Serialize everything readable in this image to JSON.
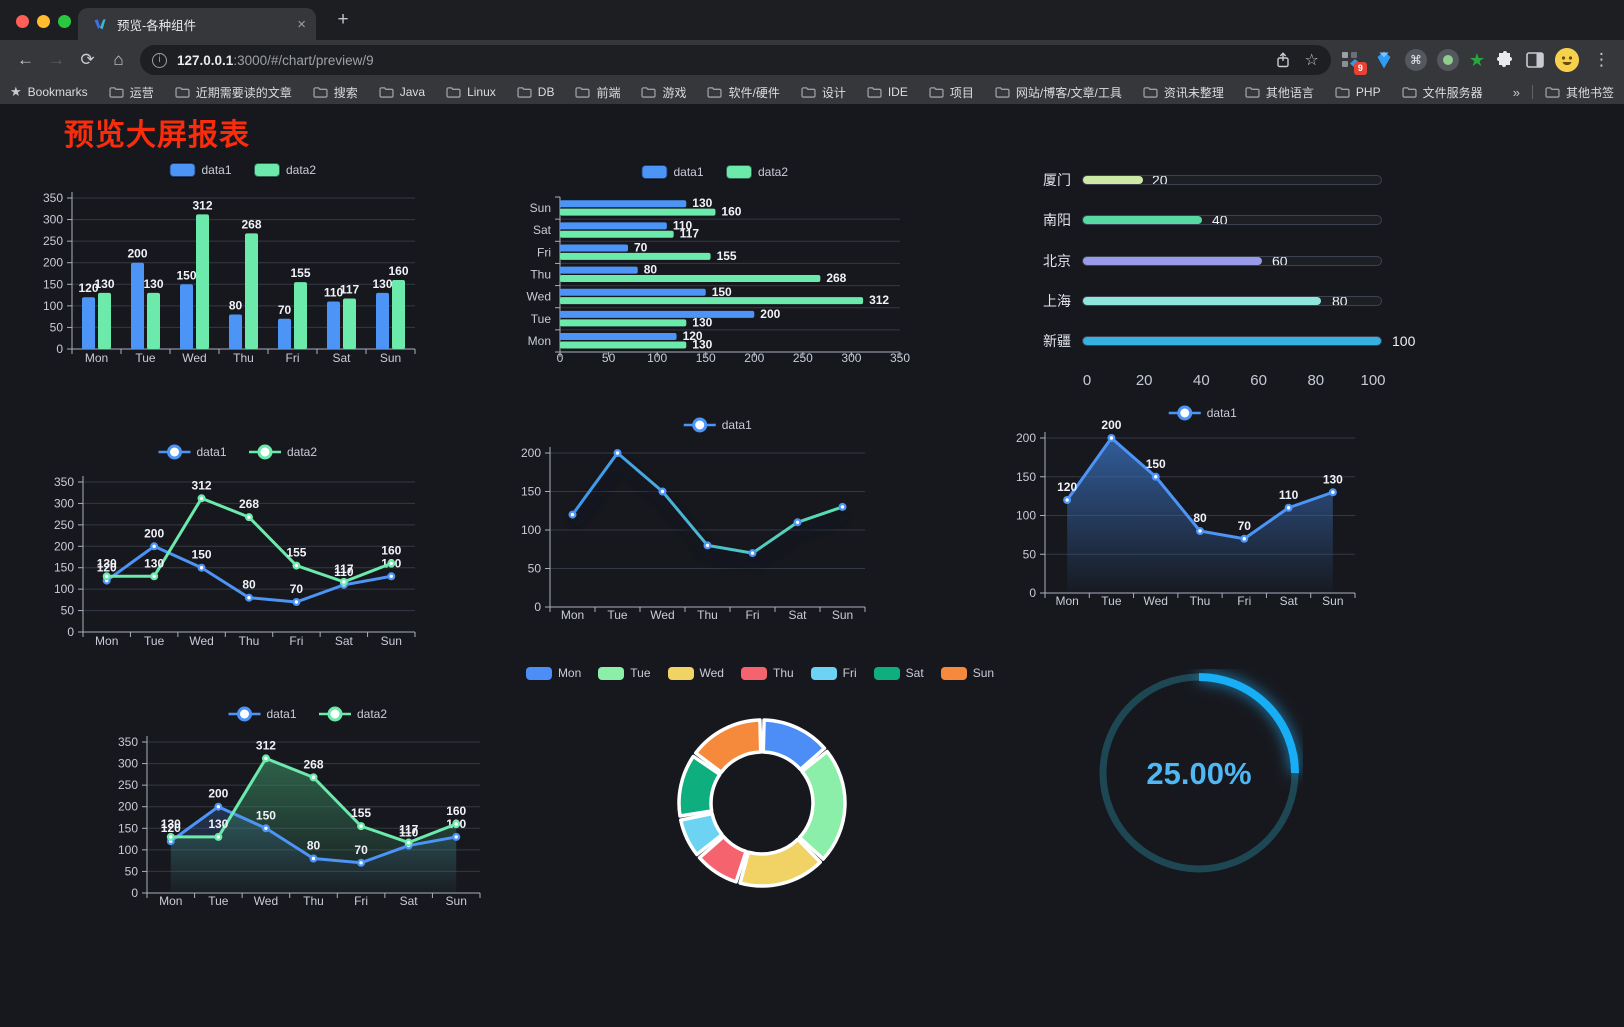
{
  "browser": {
    "tab_title": "预览-各种组件",
    "url_host": "127.0.0.1",
    "url_rest": ":3000/#/chart/preview/9",
    "extension_badge": "9",
    "bookmarks": [
      "Bookmarks",
      "运营",
      "近期需要读的文章",
      "搜索",
      "Java",
      "Linux",
      "DB",
      "前端",
      "游戏",
      "软件/硬件",
      "设计",
      "IDE",
      "项目",
      "网站/博客/文章/工具",
      "资讯未整理",
      "其他语言",
      "PHP",
      "文件服务器"
    ],
    "bookmarks_overflow": "»",
    "other_bookmarks": "其他书签"
  },
  "icons": {
    "close": "×",
    "new_tab": "+",
    "back": "←",
    "forward": "→",
    "reload": "⟳",
    "home": "⌂",
    "menu": "⋮",
    "star": "☆",
    "bookmark_star": "★",
    "command": "⌘",
    "ext_star": "★",
    "overflow": "»"
  },
  "page": {
    "title": "预览大屏报表",
    "title_color": "#F92C0B",
    "background": "#17181E"
  },
  "chart_data": [
    {
      "id": "bar-grouped",
      "type": "bar",
      "categories": [
        "Mon",
        "Tue",
        "Wed",
        "Thu",
        "Fri",
        "Sat",
        "Sun"
      ],
      "series": [
        {
          "name": "data1",
          "color": "#4D94F7",
          "values": [
            120,
            200,
            150,
            80,
            70,
            110,
            130
          ]
        },
        {
          "name": "data2",
          "color": "#6CEAAB",
          "values": [
            130,
            130,
            312,
            268,
            155,
            117,
            160
          ]
        }
      ],
      "ylim": [
        0,
        350
      ],
      "yticks": [
        0,
        50,
        100,
        150,
        200,
        250,
        300,
        350
      ],
      "legend": [
        "data1",
        "data2"
      ],
      "legend_position": "top",
      "value_labels": true,
      "grid": true
    },
    {
      "id": "bar-horizontal",
      "type": "bar-horizontal",
      "categories": [
        "Mon",
        "Tue",
        "Wed",
        "Thu",
        "Fri",
        "Sat",
        "Sun"
      ],
      "display_order_top_to_bottom": [
        "Sun",
        "Sat",
        "Fri",
        "Thu",
        "Wed",
        "Tue",
        "Mon"
      ],
      "series": [
        {
          "name": "data1",
          "color": "#4D94F7",
          "values": [
            120,
            200,
            150,
            80,
            70,
            110,
            130
          ]
        },
        {
          "name": "data2",
          "color": "#6CEAAB",
          "values": [
            130,
            130,
            312,
            268,
            155,
            117,
            160
          ]
        }
      ],
      "xlim": [
        0,
        350
      ],
      "xticks": [
        0,
        50,
        100,
        150,
        200,
        250,
        300,
        350
      ],
      "legend": [
        "data1",
        "data2"
      ],
      "legend_position": "top",
      "value_labels": true,
      "grid": true
    },
    {
      "id": "progress",
      "type": "progress-bars",
      "max": 100,
      "items": [
        {
          "label": "厦门",
          "value": 20,
          "color": "#CDE9A6"
        },
        {
          "label": "南阳",
          "value": 40,
          "color": "#57D9A3"
        },
        {
          "label": "北京",
          "value": 60,
          "color": "#989BE8"
        },
        {
          "label": "上海",
          "value": 80,
          "color": "#8FE6DD"
        },
        {
          "label": "新疆",
          "value": 100,
          "color": "#35B2E2"
        }
      ],
      "xticks": [
        0,
        20,
        40,
        60,
        80,
        100
      ]
    },
    {
      "id": "line-two",
      "type": "line",
      "categories": [
        "Mon",
        "Tue",
        "Wed",
        "Thu",
        "Fri",
        "Sat",
        "Sun"
      ],
      "series": [
        {
          "name": "data1",
          "color": "#4D94F7",
          "values": [
            120,
            200,
            150,
            80,
            70,
            110,
            130
          ]
        },
        {
          "name": "data2",
          "color": "#6CEAAB",
          "values": [
            130,
            130,
            312,
            268,
            155,
            117,
            160
          ]
        }
      ],
      "ylim": [
        0,
        350
      ],
      "yticks": [
        0,
        50,
        100,
        150,
        200,
        250,
        300,
        350
      ],
      "legend": [
        "data1",
        "data2"
      ],
      "legend_position": "top",
      "value_labels": true,
      "grid": true
    },
    {
      "id": "line-gradient",
      "type": "line",
      "categories": [
        "Mon",
        "Tue",
        "Wed",
        "Thu",
        "Fri",
        "Sat",
        "Sun"
      ],
      "series": [
        {
          "name": "data1",
          "color": "#4D94F7",
          "line_gradient": [
            "#3E8DF5",
            "#5BE8A8"
          ],
          "shadow": true,
          "values": [
            120,
            200,
            150,
            80,
            70,
            110,
            130
          ]
        }
      ],
      "ylim": [
        0,
        200
      ],
      "yticks": [
        0,
        50,
        100,
        150,
        200
      ],
      "legend": [
        "data1"
      ],
      "legend_position": "top",
      "value_labels": false,
      "grid": true
    },
    {
      "id": "line-area",
      "type": "area",
      "categories": [
        "Mon",
        "Tue",
        "Wed",
        "Thu",
        "Fri",
        "Sat",
        "Sun"
      ],
      "series": [
        {
          "name": "data1",
          "color": "#4D94F7",
          "area": [
            "rgba(56,110,185,0.80)",
            "rgba(56,110,185,0.02)"
          ],
          "values": [
            120,
            200,
            150,
            80,
            70,
            110,
            130
          ]
        }
      ],
      "ylim": [
        0,
        200
      ],
      "yticks": [
        0,
        50,
        100,
        150,
        200
      ],
      "legend": [
        "data1"
      ],
      "legend_position": "top",
      "value_labels": true,
      "grid": true
    },
    {
      "id": "line-area-two",
      "type": "area",
      "categories": [
        "Mon",
        "Tue",
        "Wed",
        "Thu",
        "Fri",
        "Sat",
        "Sun"
      ],
      "series": [
        {
          "name": "data1",
          "color": "#4D94F7",
          "area": [
            "rgba(62,110,185,0.55)",
            "rgba(62,110,185,0.02)"
          ],
          "values": [
            120,
            200,
            150,
            80,
            70,
            110,
            130
          ]
        },
        {
          "name": "data2",
          "color": "#6CEAAB",
          "area": [
            "rgba(62,150,105,0.65)",
            "rgba(62,150,105,0.03)"
          ],
          "values": [
            130,
            130,
            312,
            268,
            155,
            117,
            160
          ]
        }
      ],
      "ylim": [
        0,
        350
      ],
      "yticks": [
        0,
        50,
        100,
        150,
        200,
        250,
        300,
        350
      ],
      "legend": [
        "data1",
        "data2"
      ],
      "legend_position": "top",
      "value_labels": true,
      "grid": true
    },
    {
      "id": "donut",
      "type": "pie",
      "inner_radius_ratio": 0.61,
      "items": [
        {
          "label": "Mon",
          "value": 120,
          "color": "#4C8DF6"
        },
        {
          "label": "Tue",
          "value": 200,
          "color": "#8BEFA9"
        },
        {
          "label": "Wed",
          "value": 150,
          "color": "#F0D364"
        },
        {
          "label": "Thu",
          "value": 80,
          "color": "#F5646E"
        },
        {
          "label": "Fri",
          "value": 70,
          "color": "#6CD3F2"
        },
        {
          "label": "Sat",
          "value": 110,
          "color": "#0FAE7E"
        },
        {
          "label": "Sun",
          "value": 130,
          "color": "#F58A3C"
        }
      ],
      "legend_position": "top"
    },
    {
      "id": "gauge",
      "type": "gauge",
      "value": 25,
      "label": "25.00%",
      "arc_color": "#18AEF5",
      "track_color": "#1E4754",
      "text_color": "#4FB7F3"
    }
  ]
}
